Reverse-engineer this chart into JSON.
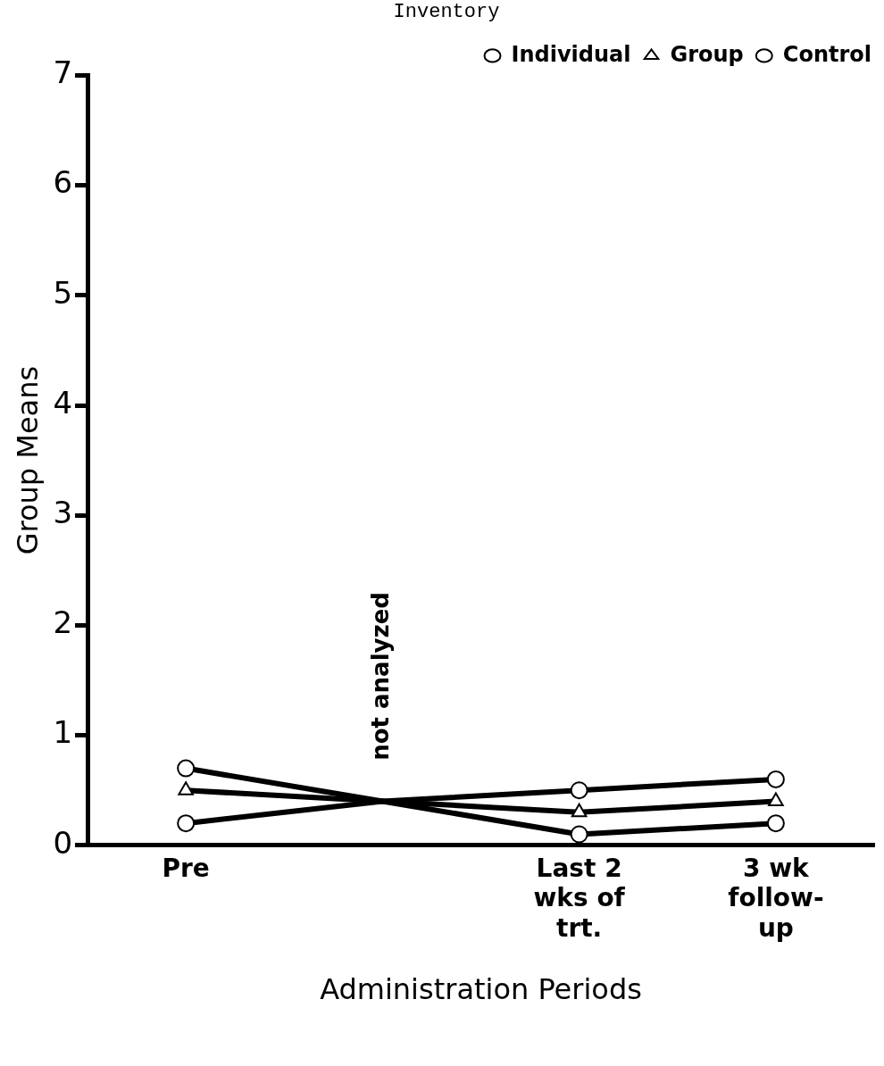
{
  "chart_data": {
    "type": "line",
    "title": "Inventory",
    "xlabel": "Administration Periods",
    "ylabel": "Group Means",
    "categories": [
      "Pre",
      null,
      "Last 2 wks of trt.",
      "3 wk follow-up"
    ],
    "series": [
      {
        "name": "Individual",
        "color": "#000000",
        "marker": "circle",
        "values": [
          0.2,
          0.4,
          0.5,
          0.6
        ]
      },
      {
        "name": "Group",
        "color": "#000000",
        "marker": "triangle",
        "values": [
          0.5,
          0.4,
          0.3,
          0.4
        ]
      },
      {
        "name": "Control",
        "color": "#000000",
        "marker": "circle",
        "values": [
          0.7,
          0.4,
          0.1,
          0.2
        ]
      }
    ],
    "ylim": [
      0,
      7
    ],
    "yticks": [
      0,
      1,
      2,
      3,
      4,
      5,
      6,
      7
    ],
    "grid": false,
    "legend": "top right",
    "line_style": "solid",
    "annotations": [
      "not analyzed"
    ]
  }
}
